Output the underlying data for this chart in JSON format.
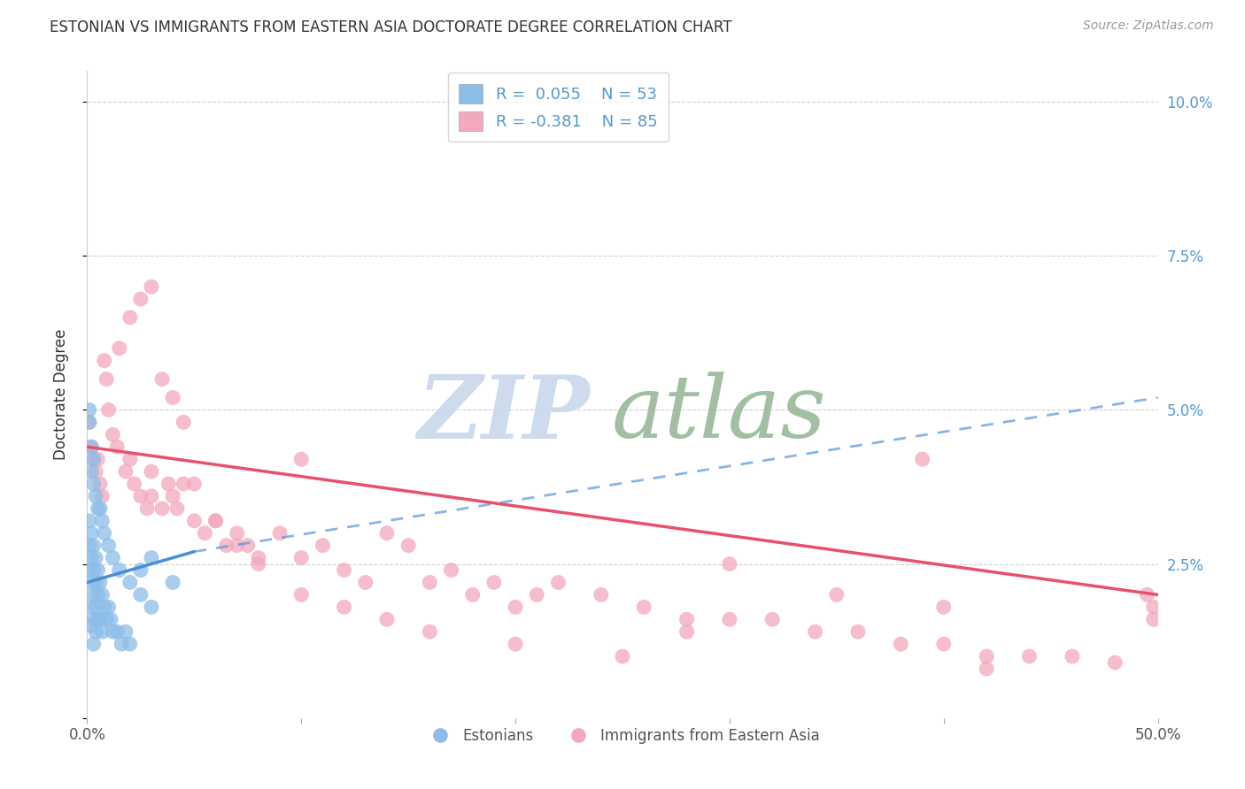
{
  "title": "ESTONIAN VS IMMIGRANTS FROM EASTERN ASIA DOCTORATE DEGREE CORRELATION CHART",
  "source": "Source: ZipAtlas.com",
  "ylabel": "Doctorate Degree",
  "xlim": [
    0.0,
    0.5
  ],
  "ylim": [
    0.0,
    0.105
  ],
  "yticks_right": [
    0.025,
    0.05,
    0.075,
    0.1
  ],
  "ytick_labels_right": [
    "2.5%",
    "5.0%",
    "7.5%",
    "10.0%"
  ],
  "xticks": [
    0.0,
    0.1,
    0.2,
    0.3,
    0.4,
    0.5
  ],
  "xtick_labels_show": [
    "0.0%",
    "",
    "",
    "",
    "",
    "50.0%"
  ],
  "blue_color": "#8BBDE8",
  "pink_color": "#F4A8BC",
  "blue_line_color": "#4A8ED4",
  "pink_line_color": "#E8506E",
  "watermark_zip_color": "#C8D8EC",
  "watermark_atlas_color": "#98B898",
  "background_color": "#FFFFFF",
  "grid_color": "#CCCCCC",
  "text_color": "#333333",
  "source_color": "#999999",
  "axis_label_color": "#5599CC",
  "R1": "0.055",
  "N1": "53",
  "R2": "-0.381",
  "N2": "85",
  "est_x": [
    0.001,
    0.001,
    0.001,
    0.002,
    0.002,
    0.002,
    0.002,
    0.002,
    0.003,
    0.003,
    0.003,
    0.003,
    0.003,
    0.004,
    0.004,
    0.004,
    0.004,
    0.005,
    0.005,
    0.005,
    0.006,
    0.006,
    0.007,
    0.007,
    0.008,
    0.009,
    0.01,
    0.011,
    0.012,
    0.014,
    0.016,
    0.018,
    0.02,
    0.025,
    0.03,
    0.001,
    0.001,
    0.002,
    0.002,
    0.003,
    0.003,
    0.004,
    0.005,
    0.006,
    0.007,
    0.008,
    0.01,
    0.012,
    0.015,
    0.02,
    0.025,
    0.03,
    0.04
  ],
  "est_y": [
    0.032,
    0.028,
    0.024,
    0.03,
    0.026,
    0.022,
    0.018,
    0.015,
    0.028,
    0.024,
    0.02,
    0.016,
    0.012,
    0.026,
    0.022,
    0.018,
    0.014,
    0.024,
    0.02,
    0.016,
    0.022,
    0.016,
    0.02,
    0.014,
    0.018,
    0.016,
    0.018,
    0.016,
    0.014,
    0.014,
    0.012,
    0.014,
    0.012,
    0.024,
    0.026,
    0.05,
    0.048,
    0.044,
    0.04,
    0.042,
    0.038,
    0.036,
    0.034,
    0.034,
    0.032,
    0.03,
    0.028,
    0.026,
    0.024,
    0.022,
    0.02,
    0.018,
    0.022
  ],
  "imm_x": [
    0.001,
    0.002,
    0.003,
    0.004,
    0.005,
    0.006,
    0.007,
    0.008,
    0.009,
    0.01,
    0.012,
    0.014,
    0.015,
    0.018,
    0.02,
    0.022,
    0.025,
    0.028,
    0.03,
    0.03,
    0.035,
    0.038,
    0.04,
    0.042,
    0.045,
    0.05,
    0.055,
    0.06,
    0.065,
    0.07,
    0.075,
    0.08,
    0.09,
    0.1,
    0.11,
    0.12,
    0.13,
    0.14,
    0.15,
    0.16,
    0.17,
    0.18,
    0.19,
    0.2,
    0.21,
    0.22,
    0.24,
    0.26,
    0.28,
    0.3,
    0.32,
    0.34,
    0.36,
    0.38,
    0.4,
    0.42,
    0.44,
    0.46,
    0.48,
    0.495,
    0.498,
    0.498,
    0.02,
    0.025,
    0.03,
    0.035,
    0.04,
    0.045,
    0.05,
    0.06,
    0.07,
    0.08,
    0.1,
    0.12,
    0.14,
    0.16,
    0.2,
    0.25,
    0.3,
    0.35,
    0.4,
    0.42,
    0.1,
    0.28,
    0.39
  ],
  "imm_y": [
    0.048,
    0.044,
    0.042,
    0.04,
    0.042,
    0.038,
    0.036,
    0.058,
    0.055,
    0.05,
    0.046,
    0.044,
    0.06,
    0.04,
    0.042,
    0.038,
    0.036,
    0.034,
    0.04,
    0.036,
    0.034,
    0.038,
    0.036,
    0.034,
    0.038,
    0.032,
    0.03,
    0.032,
    0.028,
    0.03,
    0.028,
    0.026,
    0.03,
    0.026,
    0.028,
    0.024,
    0.022,
    0.03,
    0.028,
    0.022,
    0.024,
    0.02,
    0.022,
    0.018,
    0.02,
    0.022,
    0.02,
    0.018,
    0.016,
    0.016,
    0.016,
    0.014,
    0.014,
    0.012,
    0.012,
    0.01,
    0.01,
    0.01,
    0.009,
    0.02,
    0.018,
    0.016,
    0.065,
    0.068,
    0.07,
    0.055,
    0.052,
    0.048,
    0.038,
    0.032,
    0.028,
    0.025,
    0.02,
    0.018,
    0.016,
    0.014,
    0.012,
    0.01,
    0.025,
    0.02,
    0.018,
    0.008,
    0.042,
    0.014,
    0.042
  ],
  "est_trend_x0": 0.0,
  "est_trend_x1": 0.05,
  "est_trend_y0": 0.022,
  "est_trend_y1": 0.027,
  "est_trend_dash_x0": 0.05,
  "est_trend_dash_x1": 0.5,
  "est_trend_dash_y0": 0.027,
  "est_trend_dash_y1": 0.052,
  "imm_trend_x0": 0.0,
  "imm_trend_x1": 0.5,
  "imm_trend_y0": 0.044,
  "imm_trend_y1": 0.02
}
